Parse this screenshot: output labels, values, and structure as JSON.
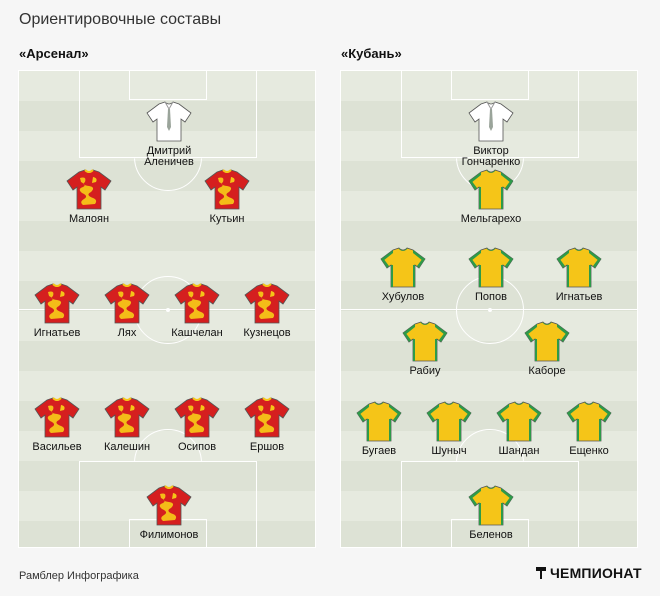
{
  "title": "Ориентировочные составы",
  "teams": [
    {
      "name": "«Арсенал»",
      "shirt": {
        "body": "#d51f1f",
        "pattern": "#f5c518",
        "collar": "#f5c518"
      },
      "goalkeeper_shirt": {
        "body": "#d51f1f",
        "pattern": "#f5c518",
        "collar": "#f5c518"
      },
      "players": [
        {
          "name": "Дмитрий\nАленичев",
          "kind": "coach",
          "shirt_color": "#ffffff"
        },
        {
          "name": "Малоян",
          "kind": "field"
        },
        {
          "name": "Кутьин",
          "kind": "field"
        },
        {
          "name": "Игнатьев",
          "kind": "field"
        },
        {
          "name": "Лях",
          "kind": "field"
        },
        {
          "name": "Кашчелан",
          "kind": "field"
        },
        {
          "name": "Кузнецов",
          "kind": "field"
        },
        {
          "name": "Васильев",
          "kind": "field"
        },
        {
          "name": "Калешин",
          "kind": "field"
        },
        {
          "name": "Осипов",
          "kind": "field"
        },
        {
          "name": "Ершов",
          "kind": "field"
        },
        {
          "name": "Филимонов",
          "kind": "gk"
        }
      ]
    },
    {
      "name": "«Кубань»",
      "shirt": {
        "body": "#f5c518",
        "pattern": "#2e9a49",
        "collar": "#2e9a49"
      },
      "players": [
        {
          "name": "Виктор\nГончаренко",
          "kind": "coach",
          "shirt_color": "#ffffff"
        },
        {
          "name": "Мельгарехо",
          "kind": "field"
        },
        {
          "name": "Хубулов",
          "kind": "field"
        },
        {
          "name": "Попов",
          "kind": "field"
        },
        {
          "name": "Игнатьев",
          "kind": "field"
        },
        {
          "name": "Рабиу",
          "kind": "field"
        },
        {
          "name": "Каборе",
          "kind": "field"
        },
        {
          "name": "Бугаев",
          "kind": "field"
        },
        {
          "name": "Шуныч",
          "kind": "field"
        },
        {
          "name": "Шандан",
          "kind": "field"
        },
        {
          "name": "Ещенко",
          "kind": "field"
        },
        {
          "name": "Беленов",
          "kind": "gk"
        }
      ]
    }
  ],
  "footer": "Рамблер Инфографика",
  "brand": "ЧЕМПИОНАТ"
}
